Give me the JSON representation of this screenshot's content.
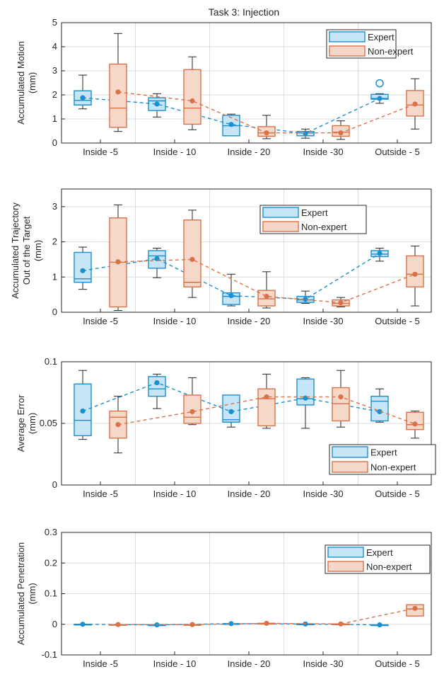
{
  "figure_title": "Task 3: Injection",
  "colors": {
    "expert_edge": "#1a8fd0",
    "expert_fill": "#c6e6f7",
    "nonexpert_edge": "#d9724a",
    "nonexpert_fill": "#f6d8c8",
    "grid": "#dcdcdc",
    "axis": "#262626"
  },
  "chart_data": [
    {
      "type": "box",
      "title": "Task 3: Injection",
      "ylabel": "Accumulated Motion\n(mm)",
      "xlabel": "",
      "categories": [
        "Inside -5",
        "Inside - 10",
        "Inside - 20",
        "Inside -30",
        "Outside - 5"
      ],
      "ylim": [
        0,
        5
      ],
      "yticks": [
        0,
        1,
        2,
        3,
        4,
        5
      ],
      "ytick_labels": [
        "0",
        "1",
        "2",
        "3",
        "4",
        "5"
      ],
      "grid": true,
      "legend": "top-right",
      "series": [
        {
          "name": "Expert",
          "boxes": [
            {
              "min": 1.42,
              "q1": 1.58,
              "median": 1.77,
              "q3": 2.17,
              "max": 2.82,
              "mean": 1.88
            },
            {
              "min": 1.08,
              "q1": 1.35,
              "median": 1.75,
              "q3": 1.88,
              "max": 2.05,
              "mean": 1.62
            },
            {
              "min": 0.3,
              "q1": 0.3,
              "median": 0.72,
              "q3": 1.15,
              "max": 1.2,
              "mean": 0.77
            },
            {
              "min": 0.2,
              "q1": 0.3,
              "median": 0.42,
              "q3": 0.48,
              "max": 0.58,
              "mean": 0.4
            },
            {
              "min": 1.65,
              "q1": 1.82,
              "median": 1.85,
              "q3": 2.02,
              "max": 2.05,
              "mean": 1.85,
              "outliers": [
                2.48
              ]
            }
          ]
        },
        {
          "name": "Non-expert",
          "boxes": [
            {
              "min": 0.48,
              "q1": 0.65,
              "median": 1.45,
              "q3": 3.28,
              "max": 4.55,
              "mean": 2.12
            },
            {
              "min": 0.55,
              "q1": 0.78,
              "median": 1.45,
              "q3": 3.05,
              "max": 3.58,
              "mean": 1.75
            },
            {
              "min": 0.18,
              "q1": 0.28,
              "median": 0.42,
              "q3": 0.68,
              "max": 1.15,
              "mean": 0.42
            },
            {
              "min": 0.15,
              "q1": 0.28,
              "median": 0.45,
              "q3": 0.72,
              "max": 0.92,
              "mean": 0.42
            },
            {
              "min": 0.58,
              "q1": 1.12,
              "median": 1.58,
              "q3": 2.18,
              "max": 2.67,
              "mean": 1.62
            }
          ]
        }
      ]
    },
    {
      "type": "box",
      "title": "",
      "ylabel": "Accumulated Trajectory\nOut of the Target\n(mm)",
      "xlabel": "",
      "categories": [
        "Inside -5",
        "Inside - 10",
        "Inside - 20",
        "Inside -30",
        "Outside - 5"
      ],
      "ylim": [
        0,
        3.5
      ],
      "yticks": [
        0,
        1,
        2,
        3
      ],
      "ytick_labels": [
        "0",
        "1",
        "2",
        "3"
      ],
      "grid": true,
      "legend": "top-right",
      "series": [
        {
          "name": "Expert",
          "boxes": [
            {
              "min": 0.65,
              "q1": 0.85,
              "median": 0.95,
              "q3": 1.7,
              "max": 1.85,
              "mean": 1.18
            },
            {
              "min": 0.98,
              "q1": 1.25,
              "median": 1.6,
              "q3": 1.75,
              "max": 1.82,
              "mean": 1.52
            },
            {
              "min": 0.18,
              "q1": 0.22,
              "median": 0.45,
              "q3": 0.55,
              "max": 1.08,
              "mean": 0.47
            },
            {
              "min": 0.25,
              "q1": 0.28,
              "median": 0.35,
              "q3": 0.45,
              "max": 0.6,
              "mean": 0.37
            },
            {
              "min": 1.45,
              "q1": 1.58,
              "median": 1.65,
              "q3": 1.75,
              "max": 1.82,
              "mean": 1.67
            }
          ]
        },
        {
          "name": "Non-expert",
          "boxes": [
            {
              "min": 0.05,
              "q1": 0.15,
              "median": 1.42,
              "q3": 2.68,
              "max": 3.05,
              "mean": 1.43
            },
            {
              "min": 0.42,
              "q1": 0.72,
              "median": 0.85,
              "q3": 2.62,
              "max": 2.9,
              "mean": 1.5
            },
            {
              "min": 0.12,
              "q1": 0.18,
              "median": 0.38,
              "q3": 0.62,
              "max": 1.15,
              "mean": 0.45
            },
            {
              "min": 0.15,
              "q1": 0.18,
              "median": 0.25,
              "q3": 0.35,
              "max": 0.42,
              "mean": 0.27
            },
            {
              "min": 0.18,
              "q1": 0.72,
              "median": 1.08,
              "q3": 1.6,
              "max": 1.88,
              "mean": 1.08
            }
          ]
        }
      ]
    },
    {
      "type": "box",
      "title": "",
      "ylabel": "Average Error\n(mm)",
      "xlabel": "",
      "categories": [
        "Inside -5",
        "Inside - 10",
        "Inside - 20",
        "Inside -30",
        "Outside - 5"
      ],
      "ylim": [
        0,
        0.1
      ],
      "yticks": [
        0,
        0.05,
        0.1
      ],
      "ytick_labels": [
        "0",
        "0.05",
        "0.1"
      ],
      "grid": true,
      "legend": "bottom-right",
      "series": [
        {
          "name": "Expert",
          "boxes": [
            {
              "min": 0.037,
              "q1": 0.04,
              "median": 0.0525,
              "q3": 0.082,
              "max": 0.093,
              "mean": 0.06
            },
            {
              "min": 0.062,
              "q1": 0.072,
              "median": 0.078,
              "q3": 0.088,
              "max": 0.09,
              "mean": 0.083
            },
            {
              "min": 0.047,
              "q1": 0.051,
              "median": 0.053,
              "q3": 0.073,
              "max": 0.073,
              "mean": 0.0595
            },
            {
              "min": 0.046,
              "q1": 0.065,
              "median": 0.07,
              "q3": 0.086,
              "max": 0.087,
              "mean": 0.0705
            },
            {
              "min": 0.051,
              "q1": 0.052,
              "median": 0.068,
              "q3": 0.072,
              "max": 0.078,
              "mean": 0.0595
            }
          ]
        },
        {
          "name": "Non-expert",
          "boxes": [
            {
              "min": 0.026,
              "q1": 0.038,
              "median": 0.055,
              "q3": 0.06,
              "max": 0.072,
              "mean": 0.049
            },
            {
              "min": 0.049,
              "q1": 0.05,
              "median": 0.055,
              "q3": 0.073,
              "max": 0.087,
              "mean": 0.0595
            },
            {
              "min": 0.046,
              "q1": 0.048,
              "median": 0.07,
              "q3": 0.078,
              "max": 0.09,
              "mean": 0.0715
            },
            {
              "min": 0.047,
              "q1": 0.052,
              "median": 0.066,
              "q3": 0.079,
              "max": 0.093,
              "mean": 0.0715
            },
            {
              "min": 0.038,
              "q1": 0.045,
              "median": 0.049,
              "q3": 0.059,
              "max": 0.06,
              "mean": 0.0495
            }
          ]
        }
      ]
    },
    {
      "type": "box",
      "title": "",
      "ylabel": "Accumulated Penetration\n(mm)",
      "xlabel": "",
      "categories": [
        "Inside -5",
        "Inside - 10",
        "Inside - 20",
        "Inside -30",
        "Outside - 5"
      ],
      "ylim": [
        -0.1,
        0.3
      ],
      "yticks": [
        -0.1,
        0,
        0.1,
        0.2,
        0.3
      ],
      "ytick_labels": [
        "-0.1",
        "0",
        "0.1",
        "0.2",
        "0.3"
      ],
      "grid": true,
      "legend": "top-right",
      "series": [
        {
          "name": "Expert",
          "boxes": [
            {
              "min": 0,
              "q1": 0,
              "median": 0,
              "q3": 0,
              "max": 0,
              "mean": 0
            },
            {
              "min": -0.002,
              "q1": -0.002,
              "median": -0.002,
              "q3": -0.002,
              "max": -0.002,
              "mean": -0.002
            },
            {
              "min": 0.002,
              "q1": 0.002,
              "median": 0.002,
              "q3": 0.002,
              "max": 0.002,
              "mean": 0.002
            },
            {
              "min": 0.001,
              "q1": 0.001,
              "median": 0.001,
              "q3": 0.001,
              "max": 0.001,
              "mean": 0.001
            },
            {
              "min": -0.002,
              "q1": -0.002,
              "median": -0.002,
              "q3": -0.002,
              "max": -0.002,
              "mean": -0.002
            }
          ]
        },
        {
          "name": "Non-expert",
          "boxes": [
            {
              "min": -0.001,
              "q1": -0.001,
              "median": -0.001,
              "q3": -0.001,
              "max": -0.001,
              "mean": -0.001
            },
            {
              "min": -0.001,
              "q1": -0.001,
              "median": -0.001,
              "q3": -0.001,
              "max": -0.001,
              "mean": -0.001
            },
            {
              "min": 0.003,
              "q1": 0.003,
              "median": 0.003,
              "q3": 0.003,
              "max": 0.003,
              "mean": 0.003
            },
            {
              "min": 0.001,
              "q1": 0.001,
              "median": 0.001,
              "q3": 0.001,
              "max": 0.001,
              "mean": 0.001
            },
            {
              "min": 0.027,
              "q1": 0.027,
              "median": 0.05,
              "q3": 0.064,
              "max": 0.064,
              "mean": 0.052
            }
          ]
        }
      ]
    }
  ]
}
